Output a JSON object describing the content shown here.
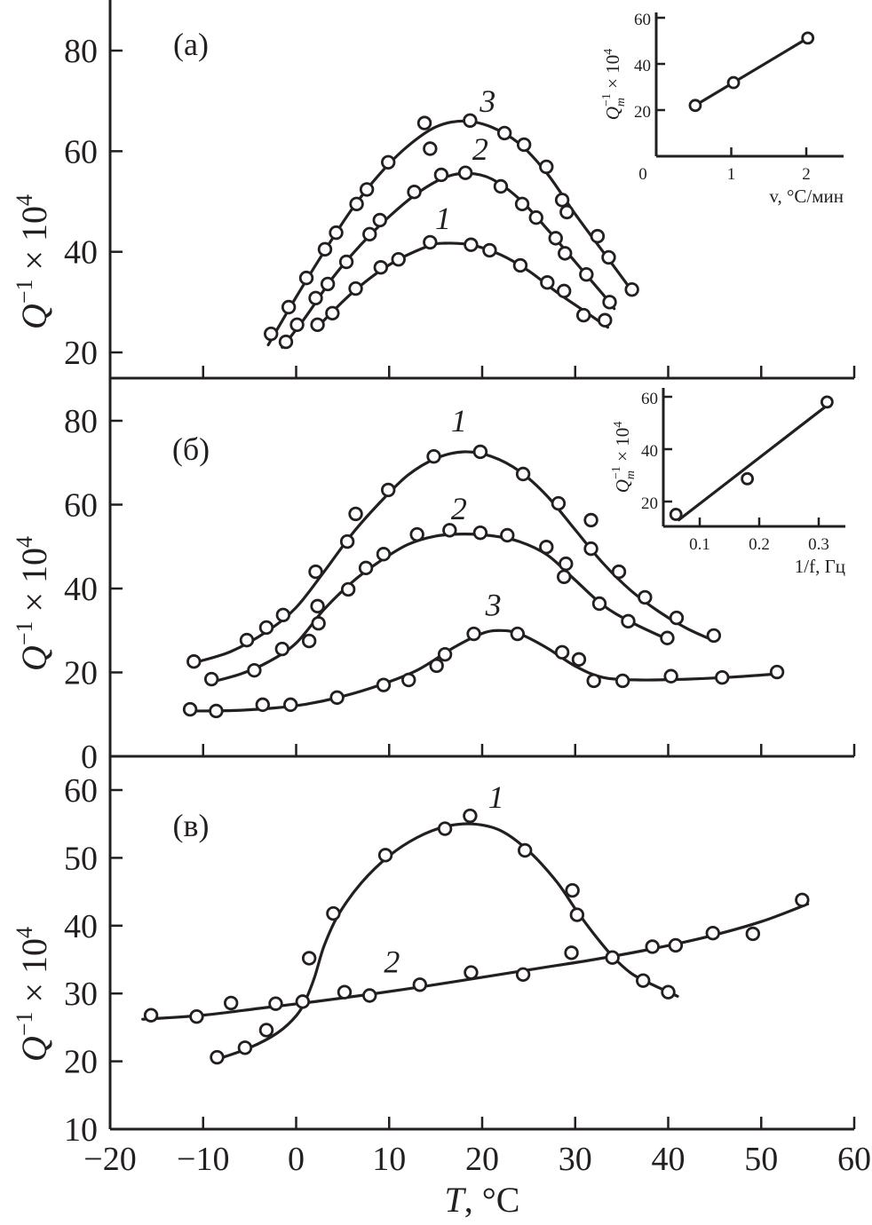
{
  "chart_data": [
    {
      "id": "a",
      "type": "line",
      "panel_label": "(a)",
      "xlabel": "T, °C",
      "ylabel": "Q⁻¹ × 10⁴",
      "xlim": [
        -20,
        60
      ],
      "ylim": [
        15,
        90
      ],
      "yticks": [
        20,
        40,
        60,
        80
      ],
      "grid": false,
      "series": [
        {
          "name": "1",
          "x": [
            2.3,
            3.9,
            6.4,
            9.1,
            11.0,
            14.4,
            18.8,
            20.8,
            24.1,
            27.0,
            28.8,
            30.9,
            33.2
          ],
          "y": [
            25.5,
            27.8,
            32.7,
            36.9,
            38.5,
            41.9,
            41.4,
            40.3,
            37.3,
            33.9,
            32.2,
            27.4,
            26.4
          ],
          "fit_x": [
            2.0,
            6,
            10,
            14,
            16,
            19,
            22,
            25,
            28,
            31,
            33.5
          ],
          "fit_y": [
            24.5,
            31.8,
            37.4,
            41.0,
            41.7,
            41.3,
            39.4,
            36.2,
            32.0,
            28.2,
            25.0
          ]
        },
        {
          "name": "2",
          "x": [
            -1.1,
            0.1,
            2.1,
            3.4,
            5.4,
            7.9,
            9.0,
            12.7,
            15.6,
            18.2,
            22.0,
            24.3,
            25.8,
            27.9,
            28.9,
            31.2,
            33.7
          ],
          "y": [
            22.1,
            25.5,
            30.8,
            33.6,
            38.0,
            43.5,
            46.3,
            51.9,
            55.3,
            55.7,
            53.0,
            49.5,
            46.8,
            42.7,
            39.7,
            35.5,
            30.0
          ],
          "fit_x": [
            -1.5,
            1,
            4,
            7,
            10,
            13,
            16,
            18.5,
            21,
            24,
            27,
            30,
            33,
            34.2
          ],
          "fit_y": [
            21.0,
            27.0,
            35.0,
            41.5,
            47.0,
            51.6,
            54.8,
            55.6,
            54.5,
            50.5,
            44.5,
            38.0,
            31.5,
            28.7
          ]
        },
        {
          "name": "3",
          "x": [
            -2.7,
            -0.8,
            1.1,
            3.1,
            4.3,
            6.5,
            7.6,
            9.9,
            13.8,
            14.4,
            18.7,
            22.4,
            24.5,
            26.9,
            28.6,
            29.1,
            32.4,
            33.6,
            36.1
          ],
          "y": [
            23.7,
            29.0,
            34.8,
            40.5,
            43.8,
            49.5,
            52.4,
            57.8,
            65.6,
            60.5,
            66.1,
            63.6,
            61.3,
            56.9,
            50.3,
            47.9,
            43.1,
            38.9,
            32.5
          ],
          "fit_x": [
            -3.0,
            0,
            3,
            6,
            9,
            12,
            15,
            18,
            21,
            24,
            27,
            30,
            33,
            36
          ],
          "fit_y": [
            21.5,
            31.0,
            40.0,
            48.5,
            55.5,
            61.0,
            64.8,
            66.0,
            64.8,
            61.5,
            55.5,
            47.5,
            40.0,
            32.5
          ]
        }
      ],
      "curve_labels": [
        {
          "text": "1",
          "x": 15.8,
          "y": 44.5
        },
        {
          "text": "2",
          "x": 19.8,
          "y": 58.3
        },
        {
          "text": "3",
          "x": 20.6,
          "y": 67.8
        }
      ],
      "inset": {
        "type": "line",
        "xlabel": "v, °C/мин",
        "ylabel": "Qm⁻¹ × 10⁴",
        "ylabel_main": "Q",
        "ylabel_sub": "m",
        "ylabel_sup": "−1",
        "ylabel_rest": " × 10",
        "ylabel_exp": "4",
        "xlim": [
          0,
          2.5
        ],
        "ylim": [
          0,
          60
        ],
        "xticks": [
          0,
          1,
          2
        ],
        "yticks": [
          20,
          40,
          60
        ],
        "x": [
          0.52,
          1.03,
          2.02
        ],
        "y": [
          22.0,
          31.9,
          51.2
        ],
        "fit_x": [
          0.52,
          2.02
        ],
        "fit_y": [
          22.0,
          51.2
        ]
      }
    },
    {
      "id": "b",
      "type": "line",
      "panel_label": "(б)",
      "xlabel": "T, °C",
      "ylabel": "Q⁻¹ × 10⁴",
      "xlim": [
        -20,
        60
      ],
      "ylim": [
        0,
        90
      ],
      "yticks": [
        0,
        20,
        40,
        60,
        80
      ],
      "grid": false,
      "series": [
        {
          "name": "1",
          "x": [
            -11.0,
            -5.3,
            -3.2,
            -1.4,
            2.1,
            5.5,
            6.4,
            9.9,
            14.8,
            19.8,
            24.4,
            28.2,
            31.7,
            31.7,
            34.7,
            37.5,
            40.9,
            44.9
          ],
          "y": [
            22.6,
            27.7,
            30.7,
            33.7,
            44.0,
            51.2,
            57.8,
            63.5,
            71.5,
            72.6,
            67.3,
            60.3,
            56.3,
            49.5,
            44.0,
            37.9,
            33.0,
            28.8
          ],
          "fit_x": [
            -11,
            -7,
            -3,
            0,
            3,
            6,
            9,
            12,
            15,
            18,
            21,
            24,
            27,
            30,
            33,
            36,
            39,
            42,
            45
          ],
          "fit_y": [
            22.3,
            25.0,
            30.0,
            35.5,
            44.0,
            53.0,
            60.5,
            67.0,
            71.0,
            72.6,
            71.5,
            68.0,
            62.0,
            54.0,
            46.0,
            39.5,
            34.5,
            30.5,
            27.5
          ]
        },
        {
          "name": "2",
          "x": [
            -9.1,
            -4.5,
            -1.5,
            1.4,
            2.3,
            2.4,
            5.6,
            7.5,
            9.4,
            13.0,
            16.5,
            19.8,
            22.7,
            26.9,
            29.0,
            28.8,
            32.6,
            35.7,
            39.9
          ],
          "y": [
            18.4,
            20.5,
            25.6,
            27.5,
            35.8,
            31.7,
            39.8,
            44.9,
            48.2,
            52.9,
            53.9,
            53.3,
            52.7,
            49.9,
            45.9,
            42.8,
            36.4,
            32.2,
            28.2
          ],
          "fit_x": [
            -9.5,
            -6,
            -3,
            0,
            3,
            6,
            9,
            12,
            15,
            18,
            21,
            24,
            27,
            30,
            33,
            36,
            40
          ],
          "fit_y": [
            17.5,
            19.6,
            22.5,
            27.0,
            35.0,
            41.5,
            46.5,
            50.5,
            52.5,
            53.0,
            52.6,
            51.2,
            48.0,
            42.0,
            36.0,
            32.0,
            27.8
          ]
        },
        {
          "name": "3",
          "x": [
            -11.4,
            -8.6,
            -3.6,
            -0.6,
            4.4,
            9.4,
            12.1,
            15.1,
            16.0,
            19.1,
            23.8,
            28.6,
            30.4,
            32.0,
            35.1,
            40.3,
            45.8,
            51.7
          ],
          "y": [
            11.2,
            10.8,
            12.3,
            12.3,
            14.0,
            17.0,
            18.2,
            21.6,
            24.3,
            29.2,
            29.2,
            24.8,
            23.1,
            18.0,
            18.0,
            19.1,
            18.8,
            20.1
          ],
          "fit_x": [
            -11.5,
            -7,
            -3,
            1,
            5,
            9,
            13,
            17,
            20,
            22,
            24,
            27,
            30,
            33,
            37,
            42,
            47,
            52
          ],
          "fit_y": [
            10.8,
            10.9,
            11.4,
            12.4,
            14.3,
            17.0,
            20.5,
            26.0,
            29.3,
            30.0,
            29.2,
            25.8,
            21.5,
            18.8,
            18.2,
            18.4,
            18.9,
            19.7
          ]
        }
      ],
      "curve_labels": [
        {
          "text": "1",
          "x": 17.5,
          "y": 77.5
        },
        {
          "text": "2",
          "x": 17.5,
          "y": 56.5
        },
        {
          "text": "3",
          "x": 21.2,
          "y": 33.5
        }
      ],
      "inset": {
        "type": "line",
        "xlabel": "1/f, Гц",
        "ylabel": "Qm⁻¹ × 10⁴",
        "ylabel_main": "Q",
        "ylabel_sub": "m",
        "ylabel_sup": "−1",
        "ylabel_rest": " × 10",
        "ylabel_exp": "4",
        "xlim": [
          0.0,
          0.35
        ],
        "ylim": [
          10,
          62
        ],
        "xticks": [
          0.1,
          0.2,
          0.3
        ],
        "yticks": [
          20,
          40,
          60
        ],
        "x": [
          0.06,
          0.18,
          0.314
        ],
        "y": [
          15.1,
          28.7,
          58.0
        ],
        "fit_x": [
          0.065,
          0.31
        ],
        "fit_y": [
          13.0,
          56.0
        ]
      }
    },
    {
      "id": "c",
      "type": "line",
      "panel_label": "(в)",
      "xlabel": "T, °C",
      "ylabel": "Q⁻¹ × 10⁴",
      "xlim": [
        -20,
        60
      ],
      "ylim": [
        10,
        62
      ],
      "yticks": [
        10,
        20,
        30,
        40,
        50,
        60
      ],
      "xticks": [
        -20,
        -10,
        0,
        10,
        20,
        30,
        40,
        50,
        60
      ],
      "grid": false,
      "series": [
        {
          "name": "1",
          "x": [
            -8.5,
            -5.5,
            -3.2,
            1.4,
            4.0,
            9.6,
            16.0,
            18.7,
            24.6,
            29.7,
            30.2,
            37.3,
            40.0
          ],
          "y": [
            20.6,
            22.0,
            24.6,
            35.2,
            41.8,
            50.4,
            54.3,
            56.2,
            51.1,
            45.2,
            41.6,
            31.9,
            30.2
          ],
          "fit_x": [
            -8.5,
            -5,
            -2,
            0,
            1,
            2,
            3,
            4.5,
            7,
            10,
            13,
            16,
            19,
            22,
            25,
            28,
            30,
            32,
            34,
            36,
            38,
            41
          ],
          "fit_y": [
            20.3,
            22.0,
            24.2,
            26.7,
            29.0,
            32.5,
            37.0,
            41.5,
            46.3,
            50.3,
            53.0,
            54.6,
            55.0,
            54.0,
            51.0,
            46.5,
            42.5,
            38.8,
            35.5,
            33.0,
            31.5,
            29.6
          ]
        },
        {
          "name": "2",
          "x": [
            -15.6,
            -10.7,
            -7.0,
            -2.2,
            0.7,
            5.2,
            7.9,
            13.3,
            18.8,
            24.4,
            29.6,
            34.0,
            38.3,
            40.8,
            44.8,
            49.1,
            54.4
          ],
          "y": [
            26.8,
            26.6,
            28.6,
            28.5,
            28.8,
            30.2,
            29.7,
            31.3,
            33.1,
            32.8,
            36.0,
            35.3,
            36.9,
            37.1,
            38.9,
            38.8,
            43.8
          ],
          "fit_x": [
            -16.5,
            -10,
            -4,
            2,
            8,
            14,
            20,
            26,
            32,
            38,
            44,
            50,
            55
          ],
          "fit_y": [
            26.2,
            26.8,
            27.8,
            28.8,
            29.9,
            31.1,
            32.4,
            33.7,
            35.0,
            36.5,
            38.3,
            40.6,
            43.2
          ]
        }
      ],
      "curve_labels": [
        {
          "text": "1",
          "x": 21.5,
          "y": 57.4
        },
        {
          "text": "2",
          "x": 10.3,
          "y": 33.1
        }
      ]
    }
  ],
  "x_axis": {
    "label_italic": "T",
    "label_rest": ", °C",
    "ticks": [
      "−20",
      "−10",
      "0",
      "10",
      "20",
      "30",
      "40",
      "50",
      "60"
    ]
  },
  "y_axis_label": {
    "main": "Q",
    "sup": "−1",
    "rest": " × 10",
    "exp": "4"
  }
}
